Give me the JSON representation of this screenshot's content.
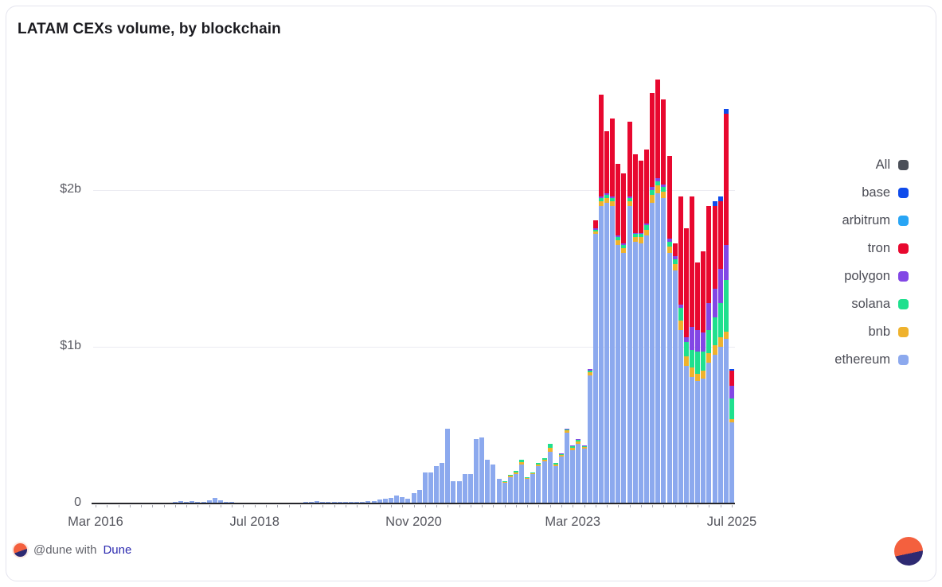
{
  "card": {
    "title": "LATAM CEXs volume, by blockchain"
  },
  "footer": {
    "attribution_prefix": "@dune with",
    "attribution_link": "Dune",
    "logo_orange": "#f4603e",
    "logo_navy": "#2e2a72"
  },
  "chart_data": {
    "type": "bar",
    "stacked": true,
    "title": "LATAM CEXs volume, by blockchain",
    "unit": "USD billions",
    "frequency": "monthly",
    "start_month_label": "Mar 2016",
    "end_month_label": "Jul 2025",
    "month_count": 113,
    "ylim": [
      0,
      2.85
    ],
    "grid": "horizontal",
    "legend_position": "right",
    "y_ticks": [
      {
        "label": "0",
        "value": 0
      },
      {
        "label": "$1b",
        "value": 1
      },
      {
        "label": "$2b",
        "value": 2
      }
    ],
    "x_ticks": [
      {
        "label": "Mar 2016",
        "month_index": 0
      },
      {
        "label": "Jul 2018",
        "month_index": 28
      },
      {
        "label": "Nov 2020",
        "month_index": 56
      },
      {
        "label": "Mar 2023",
        "month_index": 84
      },
      {
        "label": "Jul 2025",
        "month_index": 112
      }
    ],
    "legend": [
      {
        "label": "All",
        "color": "#4b4f58"
      },
      {
        "label": "base",
        "color": "#0f4beb"
      },
      {
        "label": "arbitrum",
        "color": "#28a5f5"
      },
      {
        "label": "tron",
        "color": "#e8082f"
      },
      {
        "label": "polygon",
        "color": "#8247e5"
      },
      {
        "label": "solana",
        "color": "#1fe08e"
      },
      {
        "label": "bnb",
        "color": "#efb22d"
      },
      {
        "label": "ethereum",
        "color": "#8ca9ee"
      }
    ],
    "series": [
      {
        "name": "ethereum",
        "color": "#8ca9ee",
        "start_index": 13,
        "values": [
          0.005,
          0.012,
          0.015,
          0.01,
          0.014,
          0.008,
          0.008,
          0.018,
          0.035,
          0.022,
          0.012,
          0.01,
          0.006,
          0.006,
          0.005,
          0.005,
          0.005,
          0.006,
          0.005,
          0.005,
          0.004,
          0.005,
          0.005,
          0.006,
          0.008,
          0.012,
          0.014,
          0.012,
          0.012,
          0.01,
          0.008,
          0.01,
          0.008,
          0.01,
          0.012,
          0.013,
          0.017,
          0.023,
          0.03,
          0.037,
          0.05,
          0.04,
          0.03,
          0.068,
          0.088,
          0.2,
          0.2,
          0.24,
          0.26,
          0.48,
          0.14,
          0.14,
          0.19,
          0.19,
          0.41,
          0.42,
          0.28,
          0.25,
          0.16,
          0.13,
          0.17,
          0.19,
          0.25,
          0.16,
          0.19,
          0.24,
          0.27,
          0.33,
          0.24,
          0.3,
          0.45,
          0.34,
          0.38,
          0.35,
          0.82,
          1.72,
          1.9,
          1.92,
          1.9,
          1.65,
          1.6,
          1.9,
          1.67,
          1.66,
          1.71,
          1.92,
          1.98,
          1.95,
          1.6,
          1.49,
          1.11,
          0.88,
          0.81,
          0.78,
          0.8,
          0.9,
          0.95,
          1.0,
          1.05,
          0.52
        ]
      },
      {
        "name": "bnb",
        "color": "#efb22d",
        "start_index": 72,
        "values": [
          0.005,
          0.01,
          0.01,
          0.015,
          0.005,
          0.005,
          0.01,
          0.01,
          0.025,
          0.01,
          0.01,
          0.015,
          0.015,
          0.015,
          0.01,
          0.02,
          0.02,
          0.03,
          0.03,
          0.03,
          0.03,
          0.03,
          0.03,
          0.03,
          0.04,
          0.04,
          0.05,
          0.05,
          0.04,
          0.04,
          0.04,
          0.06,
          0.06,
          0.06,
          0.05,
          0.05,
          0.06,
          0.06,
          0.06,
          0.05,
          0.02
        ]
      },
      {
        "name": "solana",
        "color": "#1fe08e",
        "start_index": 72,
        "values": [
          0.005,
          0.005,
          0.01,
          0.015,
          0.005,
          0.005,
          0.01,
          0.01,
          0.025,
          0.01,
          0.005,
          0.01,
          0.01,
          0.01,
          0.005,
          0.01,
          0.01,
          0.02,
          0.02,
          0.02,
          0.02,
          0.02,
          0.02,
          0.02,
          0.02,
          0.03,
          0.03,
          0.03,
          0.03,
          0.03,
          0.03,
          0.08,
          0.09,
          0.11,
          0.14,
          0.12,
          0.15,
          0.18,
          0.22,
          0.33,
          0.13
        ]
      },
      {
        "name": "polygon",
        "color": "#8247e5",
        "start_index": 82,
        "values": [
          0.005,
          0.005,
          0.005,
          0.005,
          0.005,
          0.01,
          0.01,
          0.01,
          0.01,
          0.01,
          0.01,
          0.01,
          0.01,
          0.01,
          0.01,
          0.01,
          0.02,
          0.02,
          0.02,
          0.02,
          0.02,
          0.02,
          0.03,
          0.15,
          0.14,
          0.12,
          0.17,
          0.18,
          0.22,
          0.22,
          0.08
        ]
      },
      {
        "name": "tron",
        "color": "#e8082f",
        "start_index": 88,
        "values": [
          0.05,
          0.65,
          0.4,
          0.5,
          0.46,
          0.45,
          0.48,
          0.5,
          0.46,
          0.47,
          0.6,
          0.63,
          0.54,
          0.53,
          0.08,
          0.69,
          0.7,
          0.83,
          0.43,
          0.52,
          0.62,
          0.53,
          0.43,
          0.84,
          0.1
        ]
      },
      {
        "name": "arbitrum",
        "color": "#28a5f5",
        "start_index": 0,
        "values": []
      },
      {
        "name": "base",
        "color": "#0f4beb",
        "start_index": 109,
        "values": [
          0.03,
          0.03,
          0.03,
          0.01
        ]
      }
    ]
  }
}
